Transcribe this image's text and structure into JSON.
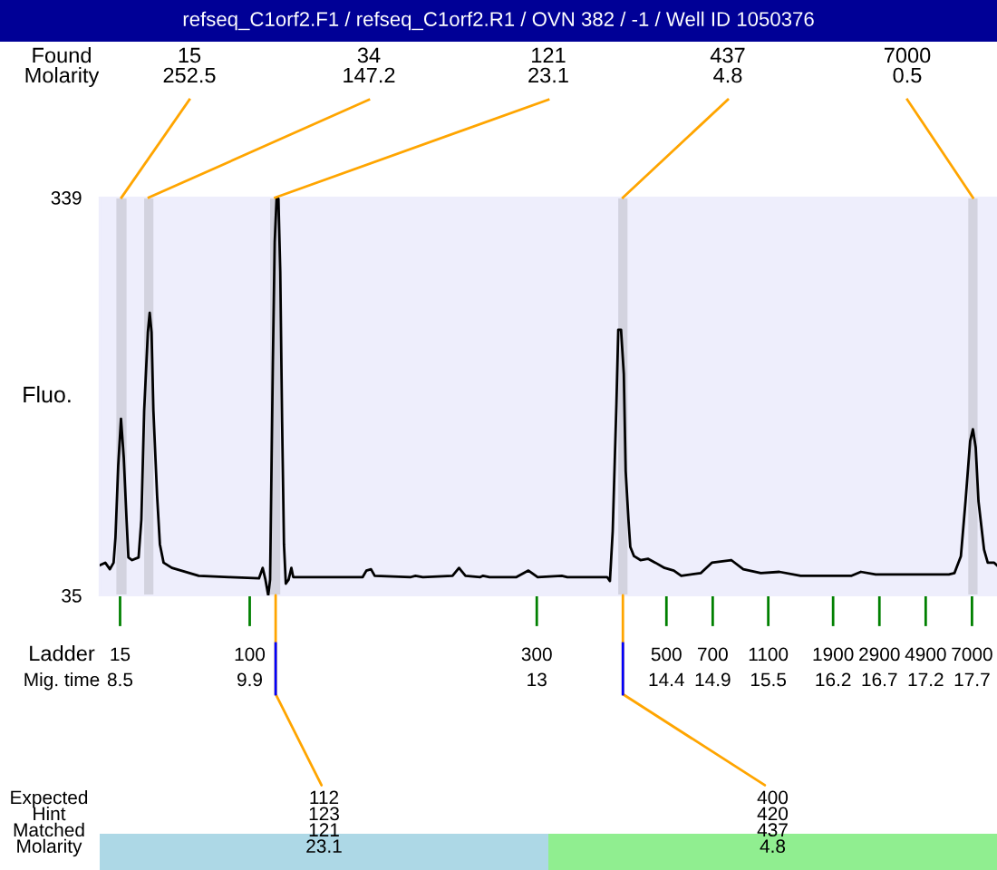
{
  "chart_data": {
    "type": "line",
    "title": "refseq_C1orf2.F1 / refseq_C1orf2.R1 / OVN 382 / -1 / Well ID 1050376",
    "xlabel": "Mig. time",
    "ylabel": "Fluo.",
    "x": [
      8.28,
      8.34,
      8.39,
      8.43,
      8.45,
      8.48,
      8.51,
      8.54,
      8.57,
      8.59,
      8.63,
      8.7,
      8.73,
      8.76,
      8.8,
      8.82,
      8.84,
      8.86,
      8.9,
      8.93,
      8.97,
      9.06,
      9.16,
      9.35,
      9.68,
      10.0,
      10.04,
      10.07,
      10.1,
      10.12,
      10.15,
      10.17,
      10.19,
      10.21,
      10.23,
      10.25,
      10.27,
      10.29,
      10.32,
      10.35,
      10.37,
      10.46,
      11.12,
      11.16,
      11.21,
      11.25,
      11.64,
      11.69,
      11.77,
      12.09,
      12.16,
      12.23,
      12.39,
      12.42,
      12.49,
      12.78,
      12.91,
      13.01,
      13.27,
      13.33,
      13.76,
      13.79,
      13.82,
      13.86,
      13.88,
      13.91,
      13.94,
      13.96,
      13.99,
      14.01,
      14.05,
      14.12,
      14.2,
      14.28,
      14.38,
      14.48,
      14.56,
      14.77,
      14.89,
      15.1,
      15.23,
      15.42,
      15.62,
      15.85,
      16.4,
      16.5,
      16.66,
      17.06,
      17.45,
      17.51,
      17.58,
      17.63,
      17.68,
      17.71,
      17.74,
      17.77,
      17.83,
      17.87,
      17.94,
      17.97
    ],
    "series": [
      {
        "color": "#000000",
        "values": [
          58,
          60,
          55,
          60,
          79,
          134,
          170,
          140,
          93,
          64,
          62,
          64,
          93,
          176,
          236,
          251,
          236,
          176,
          111,
          74,
          60,
          56,
          54,
          50,
          49,
          48,
          56,
          47,
          35,
          47,
          213,
          305,
          338,
          338,
          282,
          167,
          74,
          44,
          47,
          56,
          49,
          49,
          49,
          54,
          55,
          50,
          49,
          50,
          49,
          50,
          56,
          50,
          49,
          50,
          49,
          49,
          54,
          49,
          50,
          49,
          49,
          46,
          84,
          181,
          238,
          238,
          204,
          130,
          93,
          72,
          65,
          62,
          63,
          60,
          56,
          54,
          50,
          52,
          60,
          62,
          55,
          52,
          53,
          50,
          50,
          53,
          51,
          51,
          51,
          52,
          65,
          107,
          153,
          162,
          148,
          107,
          70,
          60,
          60,
          58
        ]
      }
    ],
    "xlim": [
      8.28,
      17.97
    ],
    "ylim": [
      35,
      339
    ],
    "yticks": [
      35,
      339
    ],
    "xticks": [
      8.5,
      9.9,
      13,
      14.4,
      14.9,
      15.5,
      16.2,
      16.7,
      17.2,
      17.7
    ],
    "bands": [
      {
        "axis": "x",
        "from": 8.46,
        "to": 8.57,
        "label": "15\n252.5",
        "color": "#d3d3df"
      },
      {
        "axis": "x",
        "from": 8.76,
        "to": 8.86,
        "label": "34\n147.2",
        "color": "#d3d3df"
      },
      {
        "axis": "x",
        "from": 10.12,
        "to": 10.23,
        "label": "121\n23.1",
        "color": "#d3d3df"
      },
      {
        "axis": "x",
        "from": 13.88,
        "to": 13.98,
        "label": "437\n4.8",
        "color": "#d3d3df"
      },
      {
        "axis": "x",
        "from": 17.66,
        "to": 17.76,
        "label": "7000\n0.5",
        "color": "#d3d3df"
      }
    ],
    "annotations": [
      "Found\nMolarity",
      "Ladder",
      "15",
      "100",
      "300",
      "500",
      "700",
      "1100",
      "1900",
      "2900",
      "4900",
      "7000",
      "Expected\nHint\nMatched\nMolarity",
      {
        "text": "112\n123\n121\n23.1",
        "x": 10.18,
        "y": 35
      },
      {
        "text": "400\n420\n437\n4.8",
        "x": 13.93,
        "y": 35
      }
    ]
  }
}
